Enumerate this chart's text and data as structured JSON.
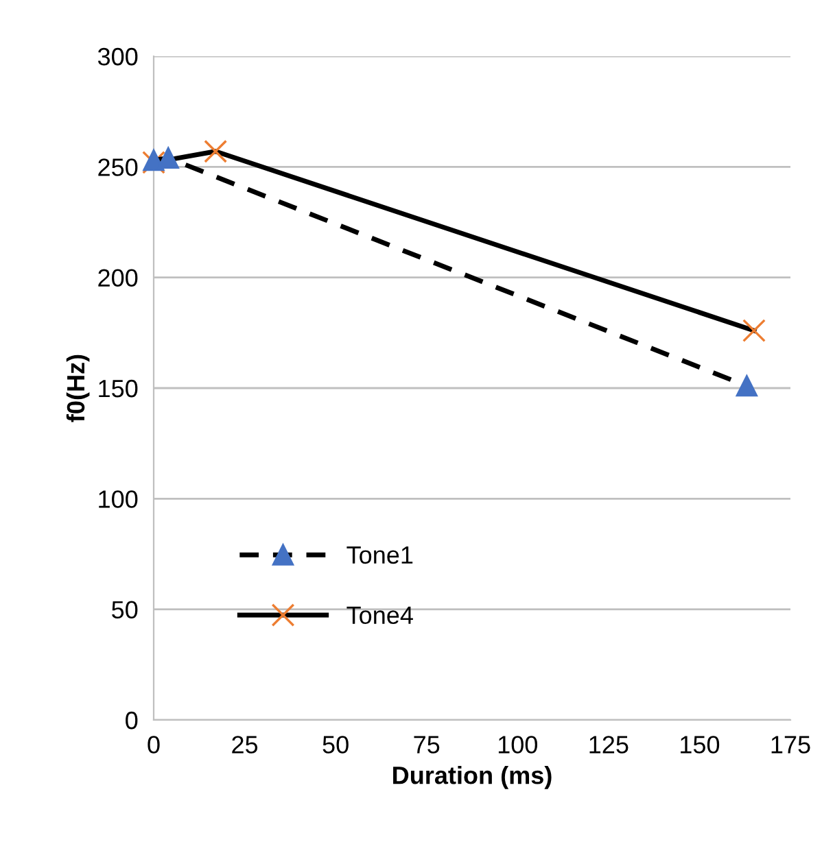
{
  "chart_data": {
    "type": "line",
    "xlabel": "Duration (ms)",
    "ylabel": "f0(Hz)",
    "xlim": [
      0,
      175
    ],
    "xticks": [
      0,
      25,
      50,
      75,
      100,
      125,
      150,
      175
    ],
    "ylim": [
      0,
      300
    ],
    "yticks": [
      0,
      50,
      100,
      150,
      200,
      250,
      300
    ],
    "grid": "y",
    "legend": "left",
    "series": [
      {
        "name": "Tone1",
        "color": "#4472c4",
        "x": [
          0,
          4,
          163
        ],
        "values": [
          253,
          254,
          151
        ],
        "marker": "triangle",
        "line_style": "dashed"
      },
      {
        "name": "Tone4",
        "color": "#ed7d31",
        "x": [
          0,
          17,
          165
        ],
        "values": [
          252,
          257,
          176
        ],
        "marker": "cross",
        "line_style": "solid"
      }
    ]
  }
}
